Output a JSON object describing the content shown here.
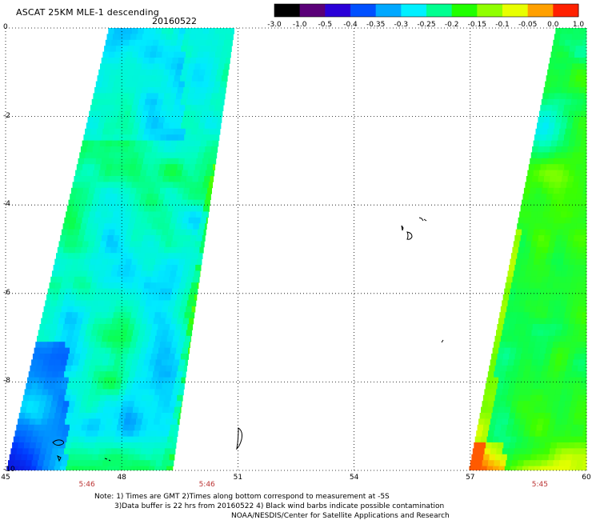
{
  "header": {
    "title": "ASCAT 25KM MLE-1 descending",
    "date": "20160522"
  },
  "colorbar": {
    "labels": [
      "-3.0",
      "-1.0",
      "-0.5",
      "-0.4",
      "-0.35",
      "-0.3",
      "-0.25",
      "-0.2",
      "-0.15",
      "-0.1",
      "-0.05",
      "0.0",
      "1.0"
    ],
    "colors": [
      "#000000",
      "#5a0078",
      "#2a00d8",
      "#0050ff",
      "#00a8ff",
      "#00f0ff",
      "#00ff90",
      "#20ff00",
      "#90ff00",
      "#e8ff00",
      "#ffa000",
      "#ff2000"
    ]
  },
  "map": {
    "y_labels": [
      "0",
      "-2",
      "-4",
      "-6",
      "-8",
      "-10"
    ],
    "y_values": [
      0,
      -2,
      -4,
      -6,
      -8,
      -10
    ],
    "x_labels": [
      "45",
      "48",
      "51",
      "54",
      "57",
      "60"
    ],
    "x_values": [
      45,
      48,
      51,
      54,
      57,
      60
    ],
    "time_labels": [
      {
        "text": "5:46",
        "lon": 47.1
      },
      {
        "text": "5:46",
        "lon": 50.2
      },
      {
        "text": "5:45",
        "lon": 58.8
      }
    ]
  },
  "notes": {
    "line1": "Note: 1) Times are GMT 2)Times along bottom correspond to measurement at -5S",
    "line2": "3)Data buffer is 22 hrs from 20160522 4) Black wind barbs indicate possible contamination",
    "line3": "NOAA/NESDIS/Center for Satellite Applications and Research"
  }
}
